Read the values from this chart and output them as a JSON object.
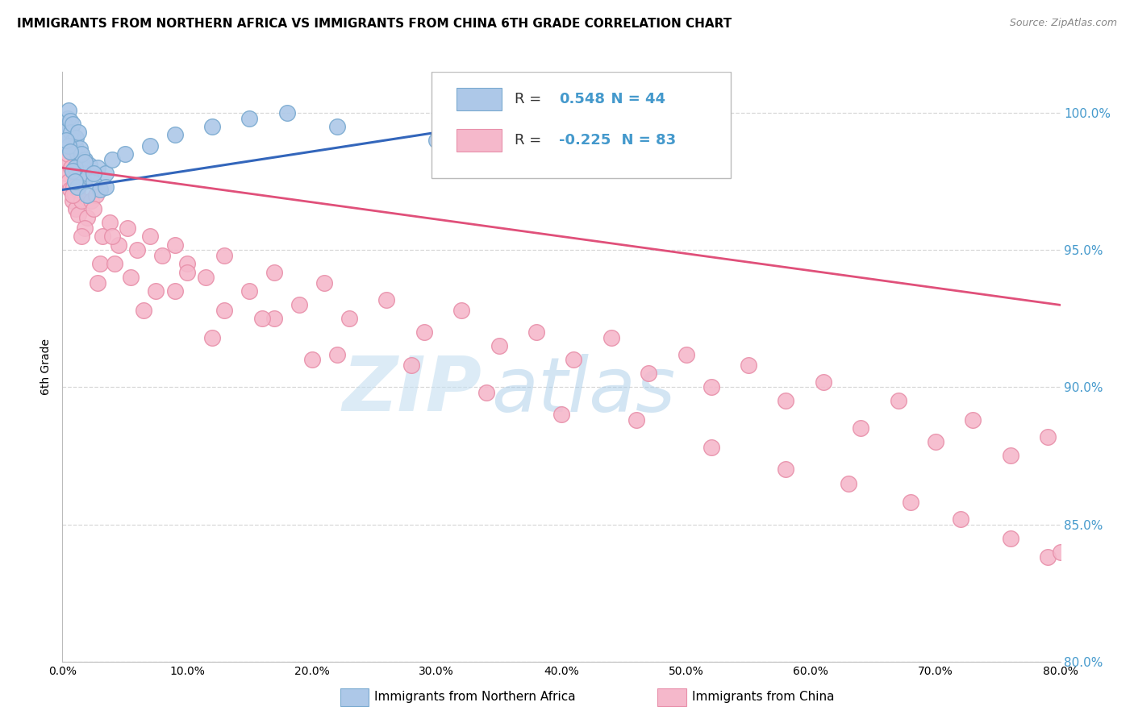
{
  "title": "IMMIGRANTS FROM NORTHERN AFRICA VS IMMIGRANTS FROM CHINA 6TH GRADE CORRELATION CHART",
  "source": "Source: ZipAtlas.com",
  "ylabel": "6th Grade",
  "xlim": [
    0.0,
    80.0
  ],
  "ylim": [
    80.0,
    101.5
  ],
  "yticks": [
    80.0,
    85.0,
    90.0,
    95.0,
    100.0
  ],
  "xticks": [
    0.0,
    10.0,
    20.0,
    30.0,
    40.0,
    50.0,
    60.0,
    70.0,
    80.0
  ],
  "legend_blue_label": "Immigrants from Northern Africa",
  "legend_pink_label": "Immigrants from China",
  "R_blue": 0.548,
  "N_blue": 44,
  "R_pink": -0.225,
  "N_pink": 83,
  "blue_color": "#adc8e8",
  "pink_color": "#f5b8cb",
  "blue_edge_color": "#7aaad0",
  "pink_edge_color": "#e890aa",
  "blue_line_color": "#3366bb",
  "pink_line_color": "#e0507a",
  "blue_line_x0": 0.0,
  "blue_line_x1": 43.0,
  "blue_line_y0": 97.2,
  "blue_line_y1": 100.2,
  "pink_line_x0": 0.0,
  "pink_line_x1": 80.0,
  "pink_line_y0": 98.0,
  "pink_line_y1": 93.0,
  "watermark_zip": "ZIP",
  "watermark_atlas": "atlas",
  "background_color": "#ffffff",
  "grid_color": "#d8d8d8",
  "right_tick_color": "#4499cc",
  "blue_x": [
    0.2,
    0.3,
    0.4,
    0.5,
    0.6,
    0.7,
    0.8,
    0.9,
    1.0,
    1.1,
    1.2,
    1.3,
    1.4,
    1.5,
    1.6,
    1.7,
    1.8,
    2.0,
    2.2,
    2.5,
    2.8,
    3.0,
    3.5,
    4.0,
    1.0,
    1.2,
    0.5,
    0.8,
    1.5,
    2.0,
    0.3,
    0.6,
    1.0,
    1.8,
    2.5,
    3.5,
    5.0,
    7.0,
    9.0,
    12.0,
    15.0,
    18.0,
    22.0,
    30.0
  ],
  "blue_y": [
    99.2,
    99.5,
    99.8,
    100.1,
    99.7,
    99.3,
    99.6,
    99.0,
    98.8,
    99.1,
    98.5,
    99.3,
    98.7,
    98.2,
    98.0,
    97.5,
    98.3,
    97.8,
    98.1,
    97.5,
    98.0,
    97.2,
    97.8,
    98.3,
    98.0,
    97.3,
    98.8,
    97.9,
    98.5,
    97.0,
    99.0,
    98.6,
    97.5,
    98.2,
    97.8,
    97.3,
    98.5,
    98.8,
    99.2,
    99.5,
    99.8,
    100.0,
    99.5,
    99.0
  ],
  "pink_x": [
    0.2,
    0.3,
    0.4,
    0.5,
    0.6,
    0.7,
    0.8,
    0.9,
    1.0,
    1.1,
    1.2,
    1.3,
    1.5,
    1.7,
    2.0,
    2.3,
    2.7,
    3.2,
    3.8,
    4.5,
    5.2,
    6.0,
    7.0,
    8.0,
    9.0,
    10.0,
    11.5,
    13.0,
    15.0,
    17.0,
    19.0,
    21.0,
    23.0,
    26.0,
    29.0,
    32.0,
    35.0,
    38.0,
    41.0,
    44.0,
    47.0,
    50.0,
    52.0,
    55.0,
    58.0,
    61.0,
    64.0,
    67.0,
    70.0,
    73.0,
    76.0,
    79.0,
    1.8,
    2.5,
    3.0,
    4.0,
    5.5,
    7.5,
    10.0,
    13.0,
    17.0,
    22.0,
    28.0,
    34.0,
    40.0,
    46.0,
    52.0,
    58.0,
    63.0,
    68.0,
    72.0,
    76.0,
    79.0,
    80.0,
    0.8,
    1.5,
    2.8,
    4.2,
    6.5,
    9.0,
    12.0,
    16.0,
    20.0
  ],
  "pink_y": [
    98.2,
    97.8,
    98.5,
    97.5,
    97.2,
    98.0,
    96.8,
    97.3,
    97.0,
    96.5,
    97.2,
    96.3,
    96.8,
    97.5,
    96.2,
    96.8,
    97.0,
    95.5,
    96.0,
    95.2,
    95.8,
    95.0,
    95.5,
    94.8,
    95.2,
    94.5,
    94.0,
    94.8,
    93.5,
    94.2,
    93.0,
    93.8,
    92.5,
    93.2,
    92.0,
    92.8,
    91.5,
    92.0,
    91.0,
    91.8,
    90.5,
    91.2,
    90.0,
    90.8,
    89.5,
    90.2,
    88.5,
    89.5,
    88.0,
    88.8,
    87.5,
    88.2,
    95.8,
    96.5,
    94.5,
    95.5,
    94.0,
    93.5,
    94.2,
    92.8,
    92.5,
    91.2,
    90.8,
    89.8,
    89.0,
    88.8,
    87.8,
    87.0,
    86.5,
    85.8,
    85.2,
    84.5,
    83.8,
    84.0,
    97.0,
    95.5,
    93.8,
    94.5,
    92.8,
    93.5,
    91.8,
    92.5,
    91.0
  ]
}
